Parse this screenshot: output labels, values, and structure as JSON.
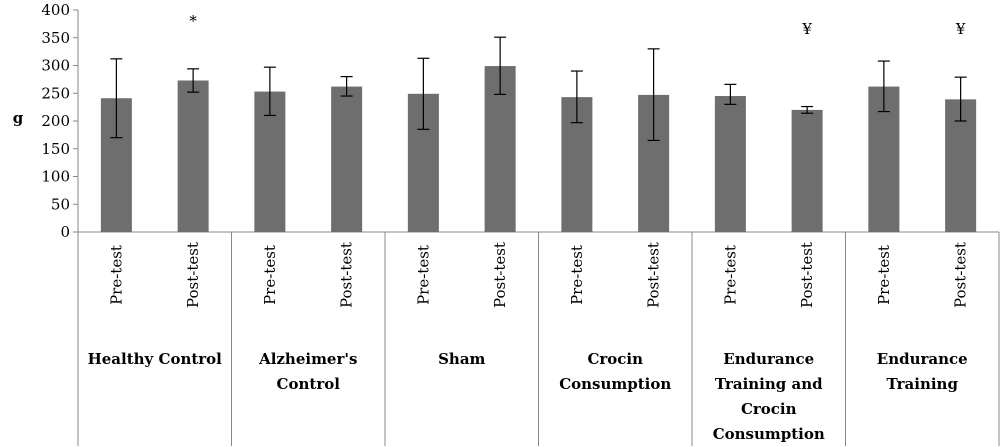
{
  "chart_data": {
    "type": "bar",
    "title": "",
    "xlabel": "",
    "ylabel": "g",
    "ylim": [
      0,
      400
    ],
    "yticks": [
      0,
      50,
      100,
      150,
      200,
      250,
      300,
      350,
      400
    ],
    "grid": false,
    "bar_color": "#6e6e6e",
    "groups": [
      {
        "name_lines": [
          "Healthy Control"
        ],
        "bars": [
          {
            "label": "Pre-test",
            "value": 241,
            "err_low": 170,
            "err_high": 312,
            "annotation": ""
          },
          {
            "label": "Post-test",
            "value": 273,
            "err_low": 252,
            "err_high": 294,
            "annotation": "*"
          }
        ]
      },
      {
        "name_lines": [
          "Alzheimer's",
          "Control"
        ],
        "bars": [
          {
            "label": "Pre-test",
            "value": 253,
            "err_low": 210,
            "err_high": 297,
            "annotation": ""
          },
          {
            "label": "Post-test",
            "value": 262,
            "err_low": 245,
            "err_high": 280,
            "annotation": ""
          }
        ]
      },
      {
        "name_lines": [
          "Sham"
        ],
        "bars": [
          {
            "label": "Pre-test",
            "value": 249,
            "err_low": 185,
            "err_high": 313,
            "annotation": ""
          },
          {
            "label": "Post-test",
            "value": 299,
            "err_low": 248,
            "err_high": 351,
            "annotation": ""
          }
        ]
      },
      {
        "name_lines": [
          "Crocin",
          "Consumption"
        ],
        "bars": [
          {
            "label": "Pre-test",
            "value": 243,
            "err_low": 197,
            "err_high": 290,
            "annotation": ""
          },
          {
            "label": "Post-test",
            "value": 247,
            "err_low": 165,
            "err_high": 330,
            "annotation": ""
          }
        ]
      },
      {
        "name_lines": [
          "Endurance",
          "Training and",
          "Crocin",
          "Consumption"
        ],
        "bars": [
          {
            "label": "Pre-test",
            "value": 245,
            "err_low": 230,
            "err_high": 266,
            "annotation": ""
          },
          {
            "label": "Post-test",
            "value": 220,
            "err_low": 214,
            "err_high": 226,
            "annotation": "¥"
          }
        ]
      },
      {
        "name_lines": [
          "Endurance",
          "Training"
        ],
        "bars": [
          {
            "label": "Pre-test",
            "value": 262,
            "err_low": 217,
            "err_high": 308,
            "annotation": ""
          },
          {
            "label": "Post-test",
            "value": 239,
            "err_low": 200,
            "err_high": 279,
            "annotation": "¥"
          }
        ]
      }
    ]
  }
}
